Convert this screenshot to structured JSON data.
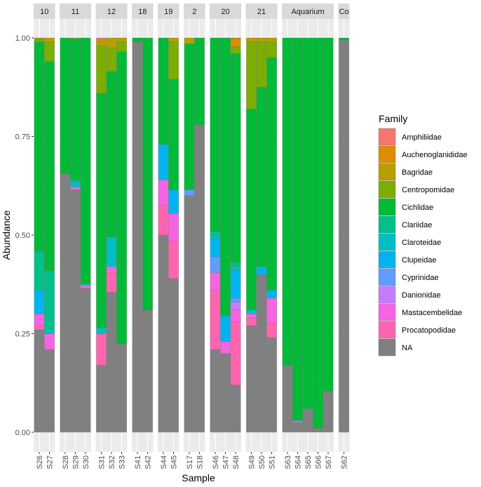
{
  "chart_data": {
    "type": "bar",
    "stacked": true,
    "faceted": true,
    "xlabel": "Sample",
    "ylabel": "Abundance",
    "ylim": [
      0,
      1
    ],
    "y_ticks": [
      "0.00",
      "0.25",
      "0.50",
      "0.75",
      "1.00"
    ],
    "legend": {
      "title": "Family",
      "placement": "right",
      "entries": [
        {
          "name": "Amphiliidae",
          "color": "#F8766D"
        },
        {
          "name": "Auchenoglanididae",
          "color": "#DE8C00"
        },
        {
          "name": "Bagridae",
          "color": "#B79F00"
        },
        {
          "name": "Centropomidae",
          "color": "#7CAE00"
        },
        {
          "name": "Cichlidae",
          "color": "#00BA38"
        },
        {
          "name": "Clariidae",
          "color": "#00C08B"
        },
        {
          "name": "Claroteidae",
          "color": "#00BFC4"
        },
        {
          "name": "Clupeidae",
          "color": "#00B4F0"
        },
        {
          "name": "Cyprinidae",
          "color": "#619CFF"
        },
        {
          "name": "Danionidae",
          "color": "#C77CFF"
        },
        {
          "name": "Mastacembelidae",
          "color": "#F564E3"
        },
        {
          "name": "Procatopodidae",
          "color": "#FF64B0"
        },
        {
          "name": "NA",
          "color": "#808080"
        }
      ]
    },
    "panels": [
      {
        "label": "10",
        "samples": [
          {
            "name": "S26",
            "stack": [
              [
                "NA",
                0.26
              ],
              [
                "Procatopodidae",
                0.01
              ],
              [
                "Mastacembelidae",
                0.03
              ],
              [
                "Clupeidae",
                0.06
              ],
              [
                "Clariidae",
                0.1
              ],
              [
                "Cichlidae",
                0.53
              ],
              [
                "Centropomidae",
                0.008
              ],
              [
                "Bagridae",
                0.002
              ]
            ]
          },
          {
            "name": "S27",
            "stack": [
              [
                "NA",
                0.21
              ],
              [
                "Mastacembelidae",
                0.04
              ],
              [
                "Claroteidae",
                0.01
              ],
              [
                "Clariidae",
                0.15
              ],
              [
                "Cichlidae",
                0.53
              ],
              [
                "Centropomidae",
                0.05
              ],
              [
                "Bagridae",
                0.01
              ]
            ]
          }
        ]
      },
      {
        "label": "11",
        "samples": [
          {
            "name": "S28",
            "stack": [
              [
                "NA",
                0.655
              ],
              [
                "Cichlidae",
                0.345
              ]
            ]
          },
          {
            "name": "S29",
            "stack": [
              [
                "NA",
                0.615
              ],
              [
                "Mastacembelidae",
                0.007
              ],
              [
                "Claroteidae",
                0.013
              ],
              [
                "Clariidae",
                0.005
              ],
              [
                "Cichlidae",
                0.358
              ],
              [
                "Centropomidae",
                0.002
              ]
            ]
          },
          {
            "name": "S30",
            "stack": [
              [
                "NA",
                0.365
              ],
              [
                "Mastacembelidae",
                0.008
              ],
              [
                "Clariidae",
                0.005
              ],
              [
                "Cichlidae",
                0.622
              ]
            ]
          }
        ]
      },
      {
        "label": "12",
        "samples": [
          {
            "name": "S31",
            "stack": [
              [
                "NA",
                0.17
              ],
              [
                "Procatopodidae",
                0.08
              ],
              [
                "Claroteidae",
                0.015
              ],
              [
                "Cichlidae",
                0.595
              ],
              [
                "Centropomidae",
                0.12
              ],
              [
                "Bagridae",
                0.015
              ],
              [
                "Amphiliidae",
                0.005
              ]
            ]
          },
          {
            "name": "S32",
            "stack": [
              [
                "NA",
                0.355
              ],
              [
                "Procatopodidae",
                0.05
              ],
              [
                "Mastacembelidae",
                0.015
              ],
              [
                "Claroteidae",
                0.075
              ],
              [
                "Cichlidae",
                0.42
              ],
              [
                "Centropomidae",
                0.06
              ],
              [
                "Bagridae",
                0.025
              ]
            ]
          },
          {
            "name": "S33",
            "stack": [
              [
                "NA",
                0.225
              ],
              [
                "Cichlidae",
                0.74
              ],
              [
                "Centropomidae",
                0.025
              ],
              [
                "Bagridae",
                0.01
              ]
            ]
          }
        ]
      },
      {
        "label": "18",
        "samples": [
          {
            "name": "S41",
            "stack": [
              [
                "NA",
                0.99
              ],
              [
                "Cichlidae",
                0.01
              ]
            ]
          },
          {
            "name": "S42",
            "stack": [
              [
                "NA",
                0.31
              ],
              [
                "Cichlidae",
                0.69
              ]
            ]
          }
        ]
      },
      {
        "label": "19",
        "samples": [
          {
            "name": "S44",
            "stack": [
              [
                "NA",
                0.5
              ],
              [
                "Procatopodidae",
                0.075
              ],
              [
                "Mastacembelidae",
                0.065
              ],
              [
                "Clupeidae",
                0.09
              ],
              [
                "Cichlidae",
                0.27
              ]
            ]
          },
          {
            "name": "S45",
            "stack": [
              [
                "NA",
                0.39
              ],
              [
                "Procatopodidae",
                0.095
              ],
              [
                "Mastacembelidae",
                0.07
              ],
              [
                "Clupeidae",
                0.06
              ],
              [
                "Cichlidae",
                0.28
              ],
              [
                "Centropomidae",
                0.095
              ],
              [
                "Bagridae",
                0.01
              ]
            ]
          }
        ]
      },
      {
        "label": "2",
        "samples": [
          {
            "name": "S17",
            "stack": [
              [
                "NA",
                0.6
              ],
              [
                "Cyprinidae",
                0.015
              ],
              [
                "Cichlidae",
                0.37
              ],
              [
                "Bagridae",
                0.015
              ]
            ]
          },
          {
            "name": "S18",
            "stack": [
              [
                "NA",
                0.78
              ],
              [
                "Cichlidae",
                0.22
              ]
            ]
          }
        ]
      },
      {
        "label": "20",
        "samples": [
          {
            "name": "S46",
            "stack": [
              [
                "NA",
                0.21
              ],
              [
                "Procatopodidae",
                0.15
              ],
              [
                "Mastacembelidae",
                0.045
              ],
              [
                "Cyprinidae",
                0.04
              ],
              [
                "Clupeidae",
                0.045
              ],
              [
                "Claroteidae",
                0.01
              ],
              [
                "Clariidae",
                0.01
              ],
              [
                "Cichlidae",
                0.49
              ]
            ]
          },
          {
            "name": "S47",
            "stack": [
              [
                "NA",
                0.2
              ],
              [
                "Mastacembelidae",
                0.03
              ],
              [
                "Clupeidae",
                0.065
              ],
              [
                "Cichlidae",
                0.705
              ]
            ]
          },
          {
            "name": "S48",
            "stack": [
              [
                "NA",
                0.12
              ],
              [
                "Procatopodidae",
                0.16
              ],
              [
                "Mastacembelidae",
                0.03
              ],
              [
                "Danionidae",
                0.02
              ],
              [
                "Cyprinidae",
                0.01
              ],
              [
                "Clupeidae",
                0.07
              ],
              [
                "Claroteidae",
                0.01
              ],
              [
                "Clariidae",
                0.01
              ],
              [
                "Cichlidae",
                0.53
              ],
              [
                "Centropomidae",
                0.018
              ],
              [
                "Auchenoglanididae",
                0.02
              ],
              [
                "Bagridae",
                0.002
              ]
            ]
          }
        ]
      },
      {
        "label": "21",
        "samples": [
          {
            "name": "S49",
            "stack": [
              [
                "NA",
                0.27
              ],
              [
                "Procatopodidae",
                0.02
              ],
              [
                "Mastacembelidae",
                0.01
              ],
              [
                "Claroteidae",
                0.01
              ],
              [
                "Cichlidae",
                0.51
              ],
              [
                "Centropomidae",
                0.17
              ],
              [
                "Bagridae",
                0.01
              ]
            ]
          },
          {
            "name": "S50",
            "stack": [
              [
                "NA",
                0.4
              ],
              [
                "Clupeidae",
                0.02
              ],
              [
                "Cichlidae",
                0.455
              ],
              [
                "Centropomidae",
                0.115
              ],
              [
                "Bagridae",
                0.01
              ]
            ]
          },
          {
            "name": "S51",
            "stack": [
              [
                "NA",
                0.24
              ],
              [
                "Procatopodidae",
                0.035
              ],
              [
                "Mastacembelidae",
                0.065
              ],
              [
                "Clupeidae",
                0.02
              ],
              [
                "Cichlidae",
                0.59
              ],
              [
                "Centropomidae",
                0.04
              ],
              [
                "Bagridae",
                0.01
              ]
            ]
          }
        ]
      },
      {
        "label": "Aquarium",
        "samples": [
          {
            "name": "S63",
            "stack": [
              [
                "NA",
                0.17
              ],
              [
                "Cichlidae",
                0.83
              ]
            ]
          },
          {
            "name": "S64",
            "stack": [
              [
                "NA",
                0.025
              ],
              [
                "Danionidae",
                0.003
              ],
              [
                "Cyprinidae",
                0.002
              ],
              [
                "Cichlidae",
                0.97
              ]
            ]
          },
          {
            "name": "S65",
            "stack": [
              [
                "NA",
                0.06
              ],
              [
                "Cichlidae",
                0.94
              ]
            ]
          },
          {
            "name": "S66",
            "stack": [
              [
                "NA",
                0.01
              ],
              [
                "Cichlidae",
                0.99
              ]
            ]
          },
          {
            "name": "S67",
            "stack": [
              [
                "NA",
                0.105
              ],
              [
                "Cichlidae",
                0.895
              ]
            ]
          }
        ]
      },
      {
        "label": "Co",
        "samples": [
          {
            "name": "S62",
            "stack": [
              [
                "NA",
                0.995
              ],
              [
                "Cichlidae",
                0.005
              ]
            ]
          }
        ]
      }
    ]
  }
}
